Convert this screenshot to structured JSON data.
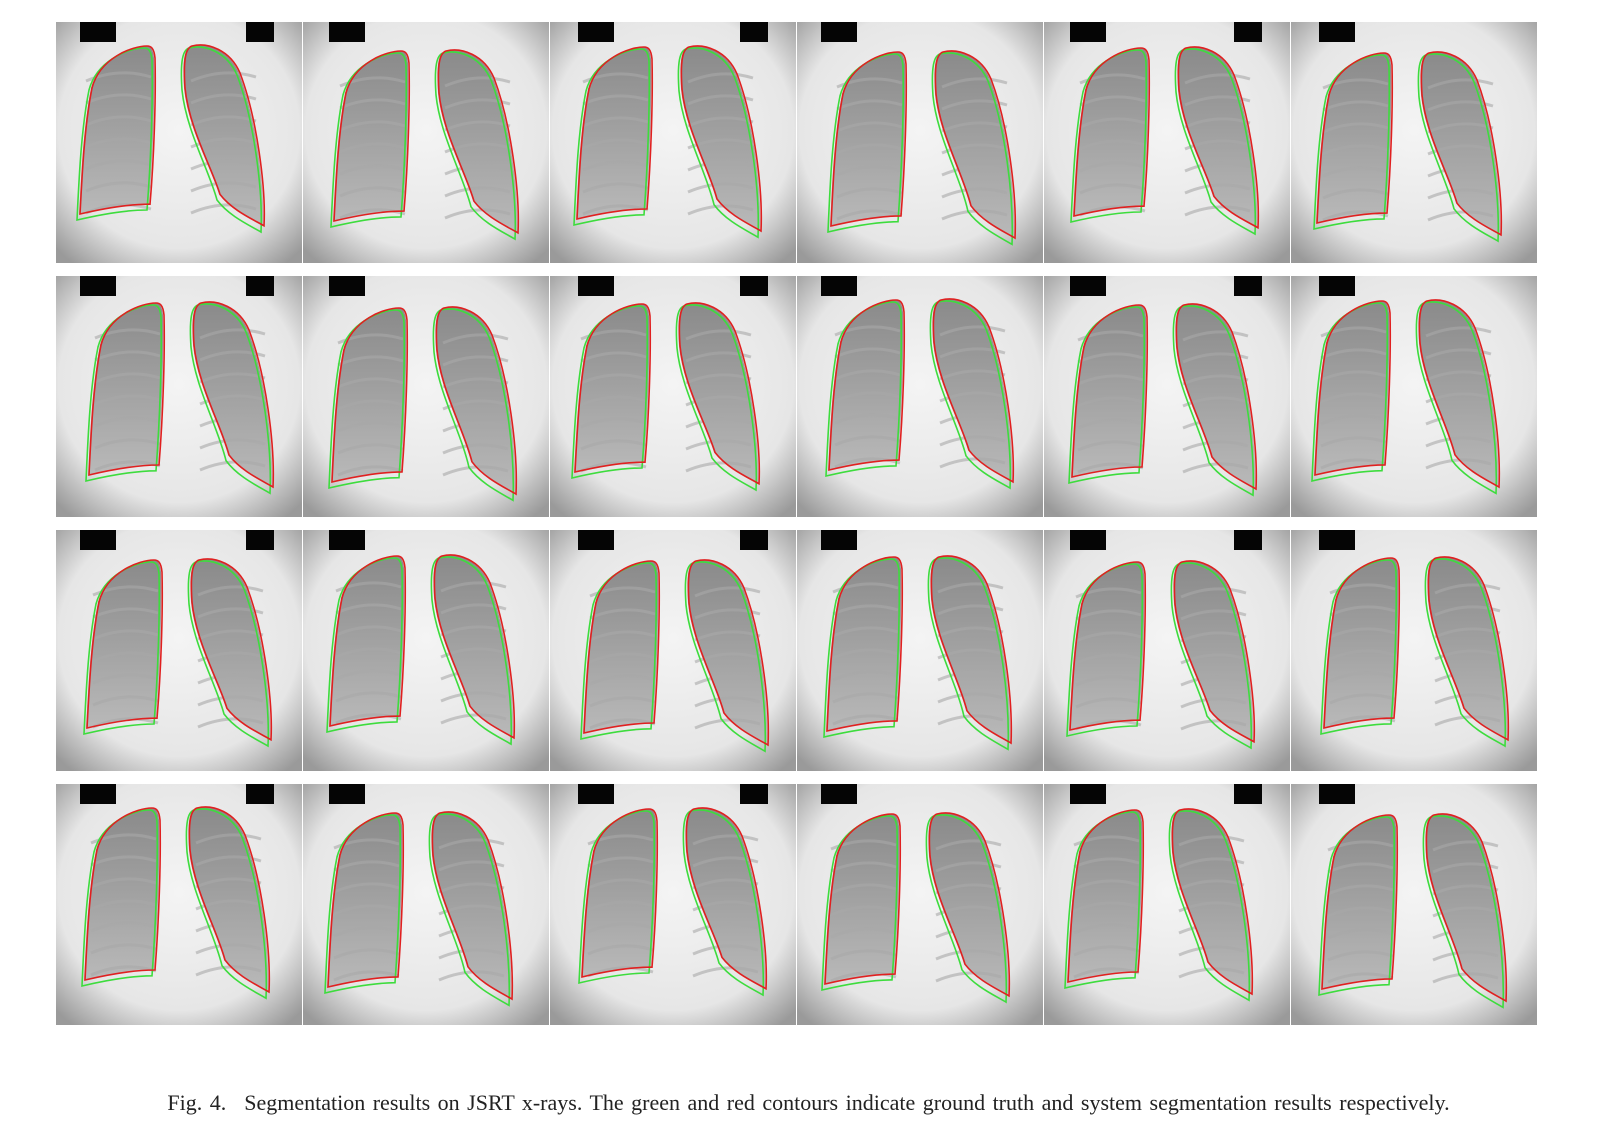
{
  "figure": {
    "rows": 4,
    "cols": 6,
    "tiles": [
      {
        "row": 0,
        "col": 0
      },
      {
        "row": 0,
        "col": 1
      },
      {
        "row": 0,
        "col": 2
      },
      {
        "row": 0,
        "col": 3
      },
      {
        "row": 0,
        "col": 4
      },
      {
        "row": 0,
        "col": 5
      },
      {
        "row": 1,
        "col": 0
      },
      {
        "row": 1,
        "col": 1
      },
      {
        "row": 1,
        "col": 2
      },
      {
        "row": 1,
        "col": 3
      },
      {
        "row": 1,
        "col": 4
      },
      {
        "row": 1,
        "col": 5
      },
      {
        "row": 2,
        "col": 0
      },
      {
        "row": 2,
        "col": 1
      },
      {
        "row": 2,
        "col": 2
      },
      {
        "row": 2,
        "col": 3
      },
      {
        "row": 2,
        "col": 4
      },
      {
        "row": 2,
        "col": 5
      },
      {
        "row": 3,
        "col": 0
      },
      {
        "row": 3,
        "col": 1
      },
      {
        "row": 3,
        "col": 2
      },
      {
        "row": 3,
        "col": 3
      },
      {
        "row": 3,
        "col": 4
      },
      {
        "row": 3,
        "col": 5
      }
    ],
    "contour_colors": {
      "ground_truth": "#3ddc3d",
      "system": "#e02020"
    }
  },
  "caption": {
    "label": "Fig. 4.",
    "text": "Segmentation results on JSRT x-rays. The green and red contours indicate ground truth and system segmentation results respectively."
  }
}
